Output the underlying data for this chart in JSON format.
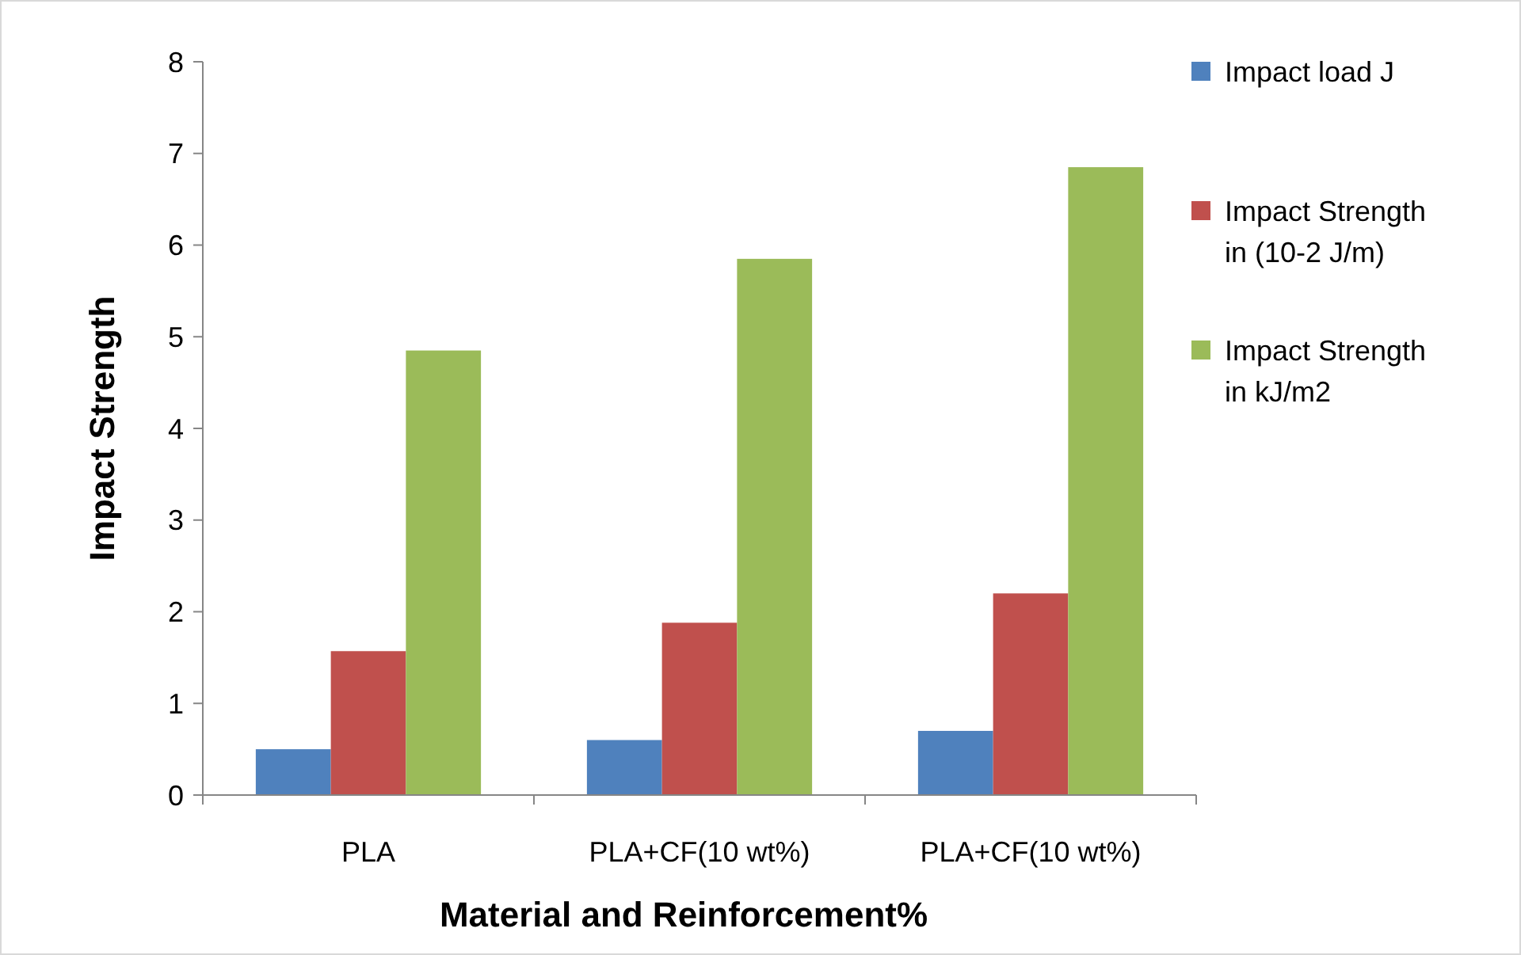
{
  "chart_data": {
    "type": "bar",
    "xlabel": "Material and Reinforcement%",
    "ylabel": "Impact Strength",
    "categories": [
      "PLA",
      "PLA+CF(10 wt%)",
      "PLA+CF(10 wt%)"
    ],
    "series": [
      {
        "name": "Impact load J",
        "color": "#4f81bd",
        "values": [
          0.5,
          0.6,
          0.7
        ]
      },
      {
        "name": "Impact Strength in (10-2 J/m)",
        "color": "#c0504d",
        "values": [
          1.57,
          1.88,
          2.2
        ]
      },
      {
        "name": "Impact Strength in kJ/m2",
        "color": "#9bbb59",
        "values": [
          4.85,
          5.85,
          6.85
        ]
      }
    ],
    "ylim": [
      0,
      8
    ],
    "yticks": [
      0,
      1,
      2,
      3,
      4,
      5,
      6,
      7,
      8
    ],
    "legend": "right",
    "grid": false
  }
}
